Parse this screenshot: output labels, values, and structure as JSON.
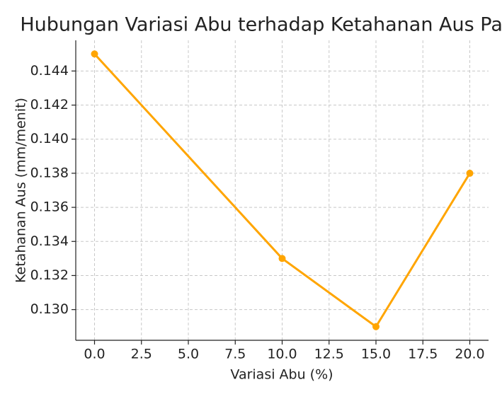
{
  "chart_data": {
    "type": "line",
    "title": "Hubungan Variasi Abu terhadap Ketahanan Aus Paving",
    "x_label": "Variasi Abu (%)",
    "y_label": "Ketahanan Aus (mm/menit)",
    "x": [
      0,
      10,
      15,
      20
    ],
    "series": [
      {
        "name": "Ketahanan Aus",
        "color": "#ffa500",
        "values": [
          0.145,
          0.133,
          0.129,
          0.138
        ]
      }
    ],
    "xlim": [
      -1,
      21
    ],
    "ylim": [
      0.1282,
      0.1458
    ],
    "xticks": [
      {
        "value": 0,
        "label": "0.0"
      },
      {
        "value": 2.5,
        "label": "2.5"
      },
      {
        "value": 5,
        "label": "5.0"
      },
      {
        "value": 7.5,
        "label": "7.5"
      },
      {
        "value": 10,
        "label": "10.0"
      },
      {
        "value": 12.5,
        "label": "12.5"
      },
      {
        "value": 15,
        "label": "15.0"
      },
      {
        "value": 17.5,
        "label": "17.5"
      },
      {
        "value": 20,
        "label": "20.0"
      }
    ],
    "yticks": [
      {
        "value": 0.13,
        "label": "0.130"
      },
      0.132,
      0.134,
      0.136,
      0.138,
      {
        "value": 0.14,
        "label": "0.140"
      },
      0.142,
      0.144
    ],
    "grid": true
  }
}
